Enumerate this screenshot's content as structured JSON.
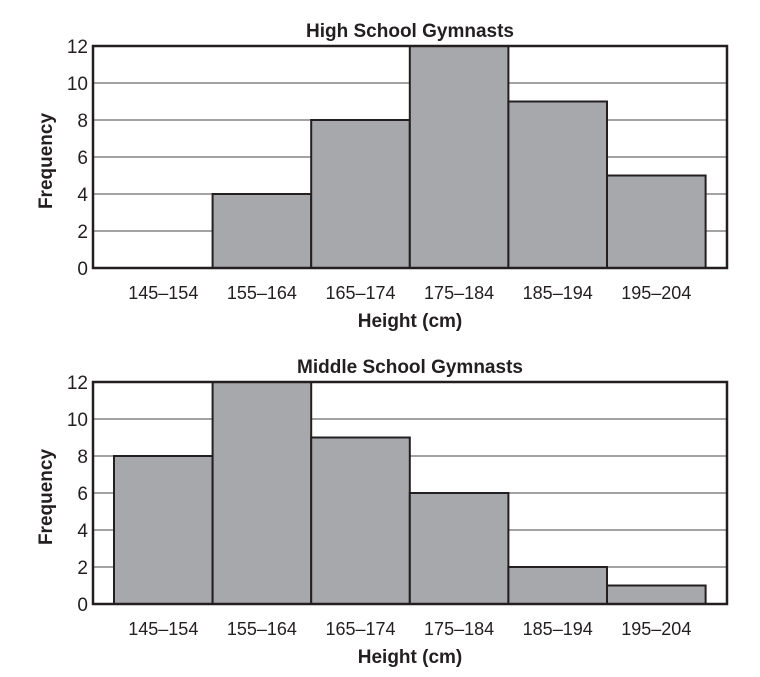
{
  "chart_data": [
    {
      "type": "bar",
      "title": "High School Gymnasts",
      "xlabel": "Height (cm)",
      "ylabel": "Frequency",
      "categories": [
        "145–154",
        "155–164",
        "165–174",
        "175–184",
        "185–194",
        "195–204"
      ],
      "values": [
        0,
        4,
        8,
        12,
        9,
        5
      ],
      "ylim": [
        0,
        12
      ],
      "yticks": [
        0,
        2,
        4,
        6,
        8,
        10,
        12
      ],
      "grid": true
    },
    {
      "type": "bar",
      "title": "Middle School Gymnasts",
      "xlabel": "Height (cm)",
      "ylabel": "Frequency",
      "categories": [
        "145–154",
        "155–164",
        "165–174",
        "175–184",
        "185–194",
        "195–204"
      ],
      "values": [
        8,
        12,
        9,
        6,
        2,
        1
      ],
      "ylim": [
        0,
        12
      ],
      "yticks": [
        0,
        2,
        4,
        6,
        8,
        10,
        12
      ],
      "grid": true
    }
  ],
  "colors": {
    "bar": "#a7a8ab",
    "grid": "#a3a3a3",
    "axis": "#231f20"
  }
}
